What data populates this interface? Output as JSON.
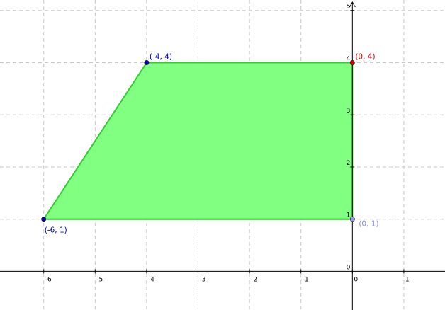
{
  "chart_data": {
    "type": "scatter",
    "title": "",
    "xlabel": "",
    "ylabel": "",
    "xlim": [
      -6.85,
      1.8
    ],
    "ylim": [
      -0.74,
      5.2
    ],
    "grid": true,
    "x_ticks": [
      -6,
      -5,
      -4,
      -3,
      -2,
      -1,
      0,
      1
    ],
    "x_tick_labels": [
      "-6",
      "-5",
      "-4",
      "-3",
      "-2",
      "-1",
      "0",
      "1"
    ],
    "y_ticks": [
      1,
      2,
      3,
      4,
      5
    ],
    "y_tick_labels": [
      "1",
      "2",
      "3",
      "4",
      "5"
    ],
    "origin_label": "0",
    "polygon": {
      "vertices": [
        [
          -6,
          1
        ],
        [
          -4,
          4
        ],
        [
          0,
          4
        ],
        [
          0,
          1
        ]
      ],
      "fill_color": "#80ff80",
      "edge_color": "#33cc33"
    },
    "points": [
      {
        "x": -4,
        "y": 4,
        "label": "(-4, 4)",
        "color": "#0000a0",
        "label_color": "#0000c0"
      },
      {
        "x": 0,
        "y": 4,
        "label": "(0, 4)",
        "color": "#cc0000",
        "label_color": "#cc0000"
      },
      {
        "x": -6,
        "y": 1,
        "label": "(-6, 1)",
        "color": "#0000a0",
        "label_color": "#0000c0"
      },
      {
        "x": 0,
        "y": 1,
        "label": "(0, 1)",
        "color": "#9999ee",
        "label_color": "#8888ee"
      }
    ],
    "grid_color": "#c8c8c8",
    "axis_color": "#000000"
  }
}
